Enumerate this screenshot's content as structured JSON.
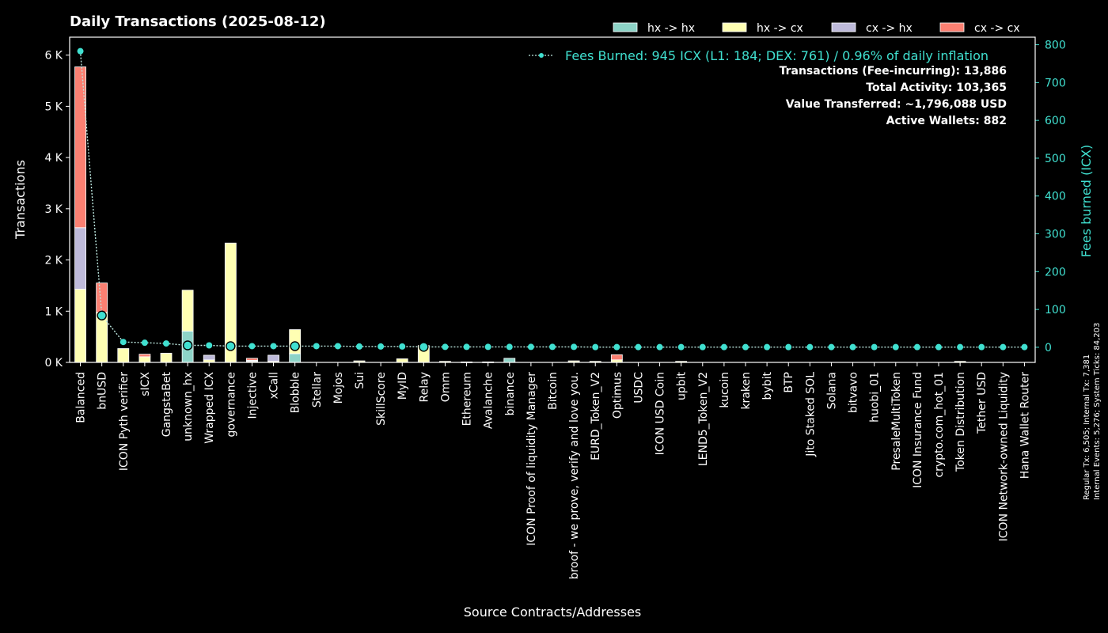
{
  "chart_data": {
    "type": "bar",
    "stacked": true,
    "title": "Daily Transactions (2025-08-12)",
    "xlabel": "Source Contracts/Addresses",
    "ylabel": "Transactions",
    "y2label": "Fees burned (ICX)",
    "ylim": [
      0,
      6350
    ],
    "y2lim": [
      -40,
      820
    ],
    "yticks": [
      0,
      1000,
      2000,
      3000,
      4000,
      5000,
      6000
    ],
    "ytick_labels": [
      "0 K",
      "1 K",
      "2 K",
      "3 K",
      "4 K",
      "5 K",
      "6 K"
    ],
    "y2ticks": [
      0,
      100,
      200,
      300,
      400,
      500,
      600,
      700,
      800
    ],
    "y2tick_labels": [
      "0",
      "100",
      "200",
      "300",
      "400",
      "500",
      "600",
      "700",
      "800"
    ],
    "categories": [
      "Balanced",
      "bnUSD",
      "ICON Pyth verifier",
      "sICX",
      "GangstaBet",
      "unknown_hx",
      "Wrapped ICX",
      "governance",
      "Injective",
      "xCall",
      "Blobble",
      "Stellar",
      "Mojos",
      "Sui",
      "SkillScore",
      "MyID",
      "Relay",
      "Omm",
      "Ethereum",
      "Avalanche",
      "binance",
      "ICON Proof of liquidity Manager",
      "Bitcoin",
      "broof - we prove, verify and love you.",
      "EURD_Token_V2",
      "Optimus",
      "USDC",
      "ICON USD Coin",
      "upbit",
      "LEND5_Token_V2",
      "kucoin",
      "kraken",
      "bybit",
      "BTP",
      "Jito Staked SOL",
      "Solana",
      "bitvavo",
      "huobi_01",
      "PresaleMultiToken",
      "ICON Insurance Fund",
      "crypto.com_hot_01",
      "Token Distribution",
      "Tether USD",
      "ICON Network-owned Liquidity",
      "Hana Wallet Router"
    ],
    "series": [
      {
        "name": "hx -> hx",
        "color": "#8dd3c7",
        "values": [
          0,
          0,
          0,
          0,
          0,
          610,
          0,
          0,
          0,
          0,
          170,
          0,
          0,
          0,
          0,
          0,
          0,
          0,
          0,
          0,
          80,
          0,
          0,
          0,
          0,
          0,
          0,
          0,
          0,
          0,
          0,
          0,
          0,
          0,
          0,
          0,
          0,
          0,
          0,
          0,
          0,
          0,
          0,
          0,
          0
        ]
      },
      {
        "name": "hx -> cx",
        "color": "#ffffb3",
        "values": [
          1430,
          980,
          270,
          110,
          180,
          800,
          50,
          2330,
          20,
          20,
          470,
          0,
          0,
          30,
          0,
          70,
          330,
          20,
          10,
          10,
          0,
          0,
          0,
          30,
          20,
          50,
          0,
          0,
          20,
          0,
          0,
          0,
          0,
          0,
          0,
          0,
          0,
          0,
          0,
          0,
          0,
          20,
          0,
          0,
          0
        ]
      },
      {
        "name": "cx -> hx",
        "color": "#bebada",
        "values": [
          1200,
          0,
          0,
          0,
          0,
          0,
          90,
          0,
          20,
          120,
          0,
          0,
          0,
          0,
          0,
          0,
          0,
          0,
          0,
          0,
          0,
          0,
          0,
          0,
          0,
          0,
          0,
          0,
          0,
          0,
          0,
          0,
          0,
          0,
          0,
          0,
          0,
          0,
          0,
          0,
          0,
          0,
          0,
          0,
          0
        ]
      },
      {
        "name": "cx -> cx",
        "color": "#fb8072",
        "values": [
          3140,
          570,
          0,
          50,
          0,
          0,
          0,
          0,
          40,
          0,
          0,
          0,
          0,
          0,
          0,
          0,
          0,
          0,
          0,
          0,
          0,
          0,
          0,
          0,
          0,
          100,
          0,
          0,
          0,
          0,
          0,
          0,
          0,
          0,
          0,
          0,
          0,
          0,
          0,
          0,
          0,
          0,
          0,
          0,
          0
        ]
      }
    ],
    "fees_series": {
      "name": "Fees Burned: 945 ICX (L1: 184; DEX: 761) / 0.96% of daily inflation",
      "color": "#40e0d0",
      "highlighted_indices": [
        1,
        5,
        7,
        10,
        16
      ],
      "values": [
        783,
        84,
        14,
        12,
        10,
        5,
        5,
        3,
        3,
        3,
        3,
        3,
        3,
        2,
        2,
        2,
        1,
        1,
        1,
        1,
        1,
        1,
        1,
        1,
        0.5,
        0.5,
        0.5,
        0.5,
        0.5,
        0.5,
        0.5,
        0.5,
        0.5,
        0.5,
        0.5,
        0.5,
        0.5,
        0.5,
        0.5,
        0.5,
        0.5,
        0.5,
        0.5,
        0.5,
        0.5
      ]
    },
    "legend_position": "top-right",
    "grid": false
  },
  "stats": [
    "Transactions (Fee-incurring): 13,886",
    "Total Activity: 103,365",
    "Value Transferred: ~1,796,088 USD",
    "Active Wallets: 882"
  ],
  "side_note": [
    "Regular Tx: 6,505; Internal Tx: 7,381",
    "Internal Events: 5,276; System Ticks: 84,203"
  ]
}
